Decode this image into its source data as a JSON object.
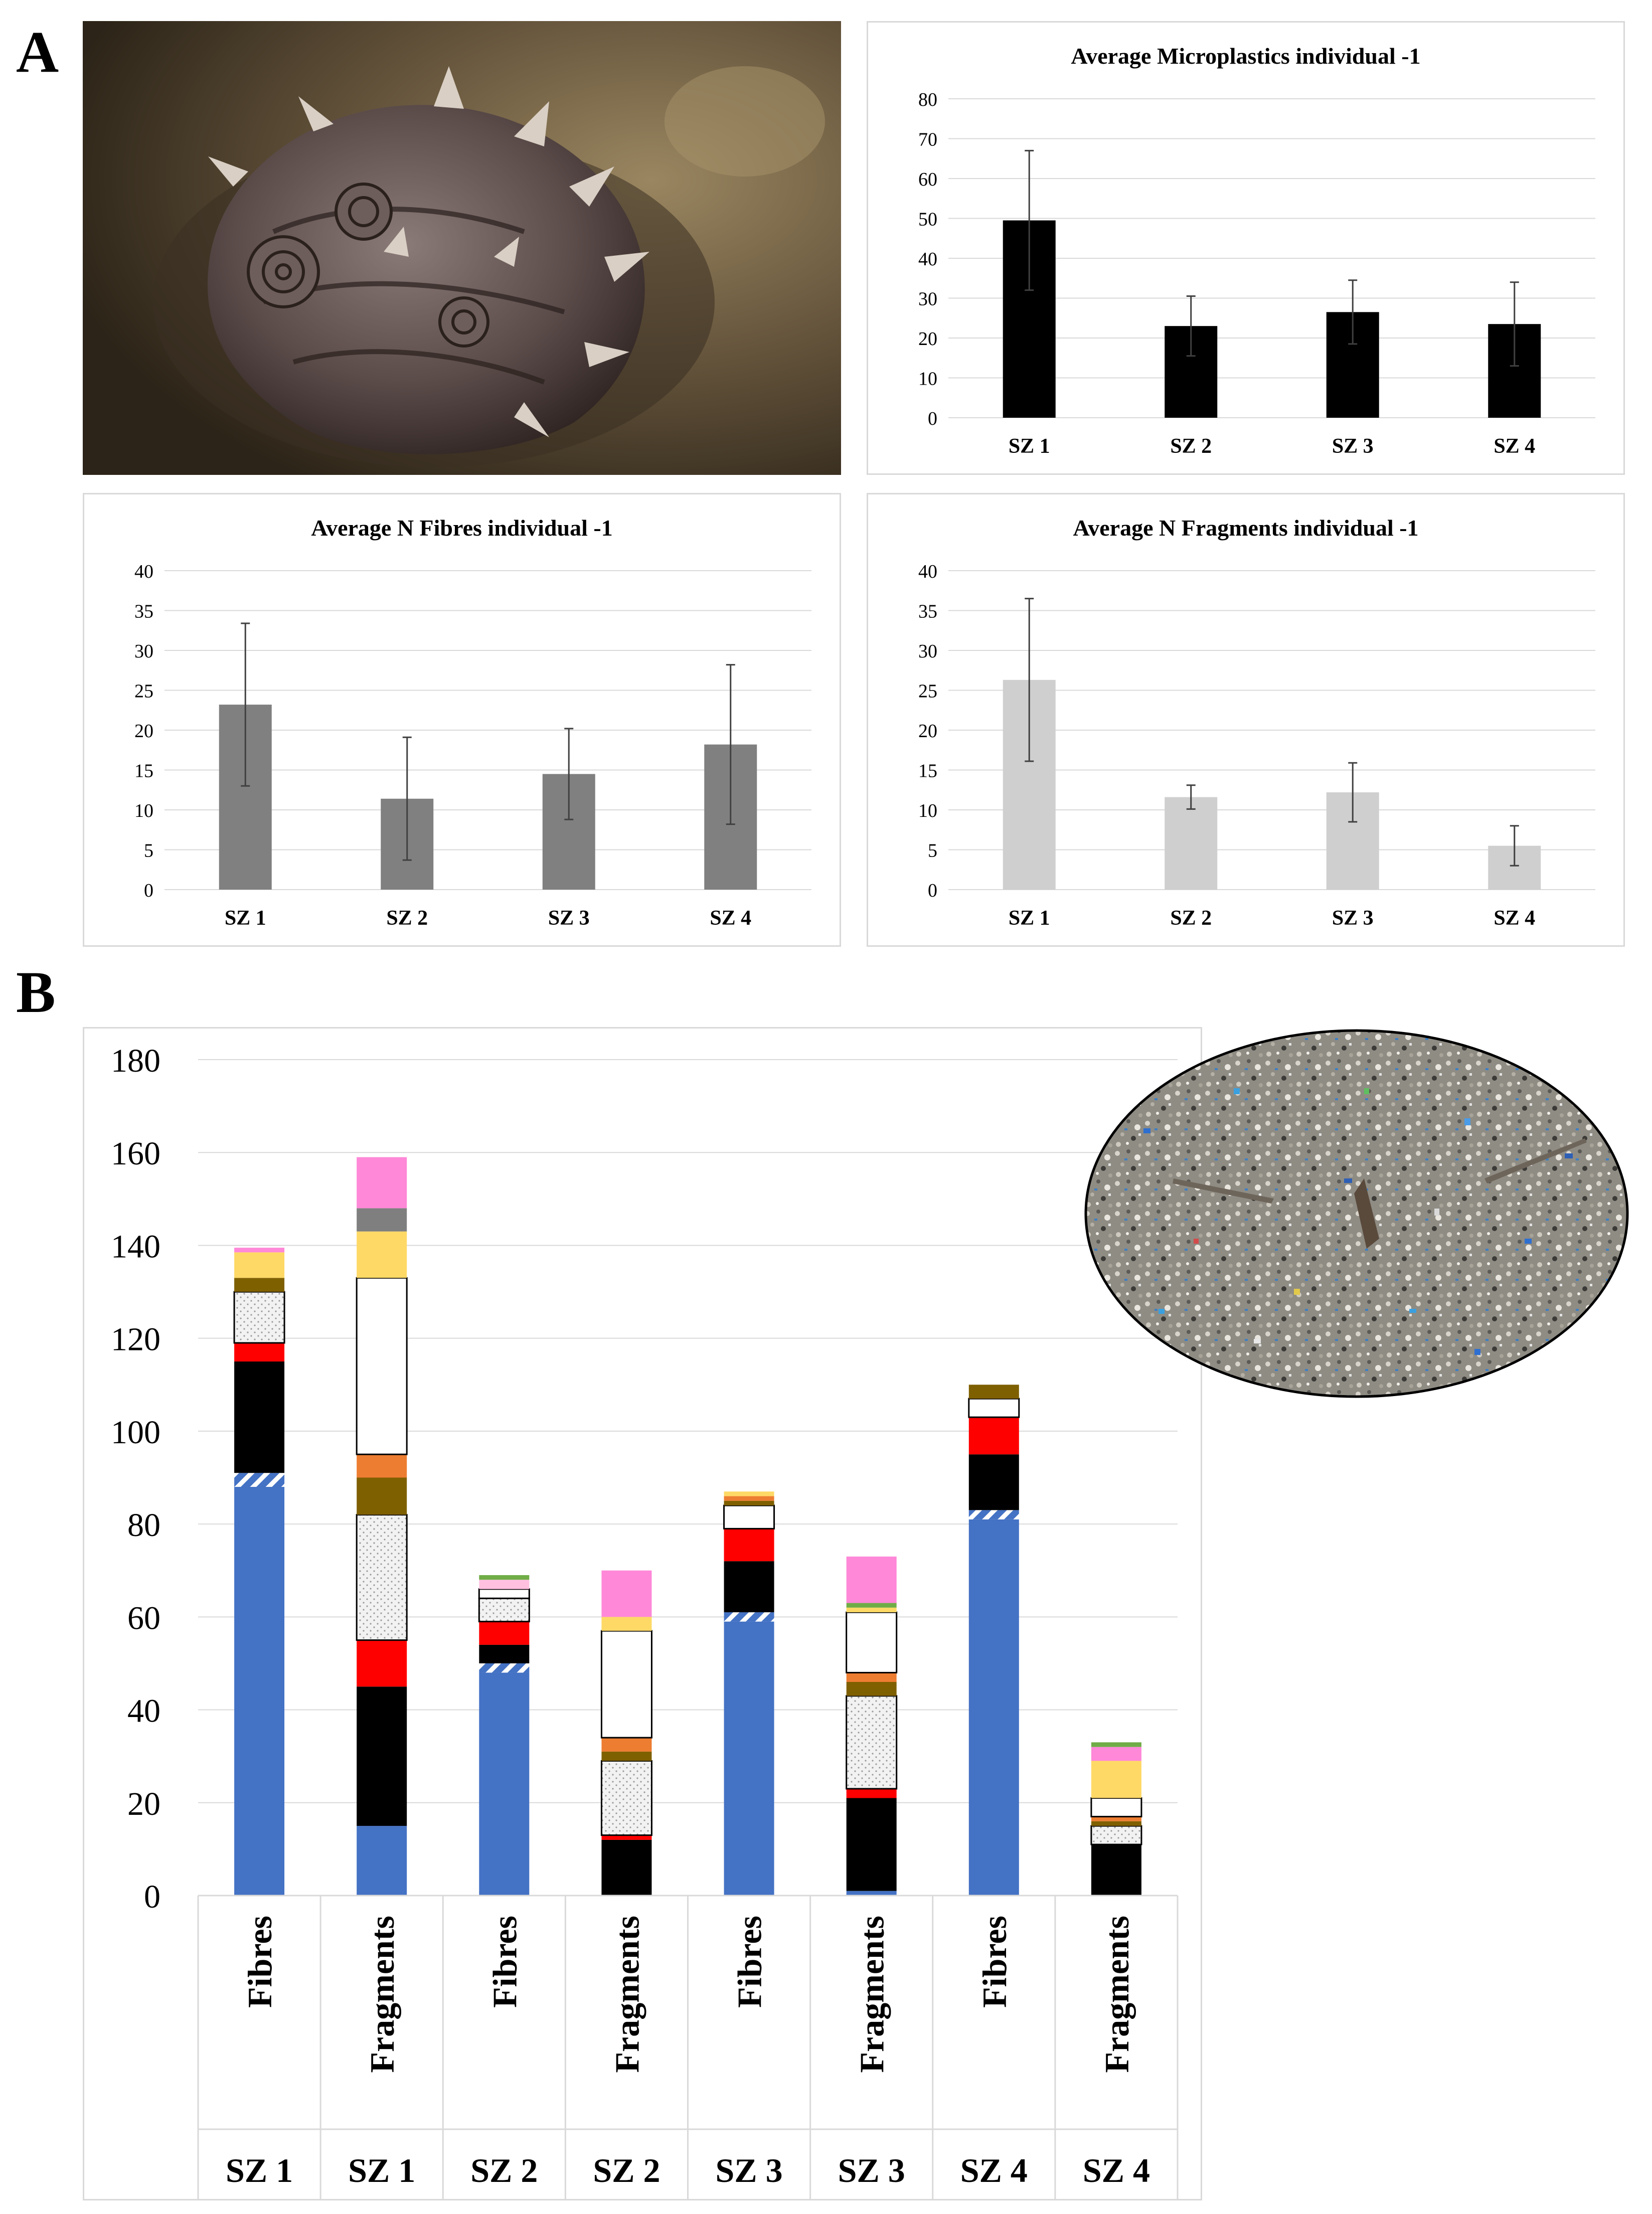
{
  "panel_labels": {
    "a": "A",
    "b": "B"
  },
  "photos": {
    "sea_cucumber": {
      "alt": "Close-up photograph of a sea cucumber"
    },
    "microplastics": {
      "alt": "Beach sediment mixed with coloured microplastic particles"
    }
  },
  "colors": {
    "total_bar": "#000000",
    "fibres_bar": "#808080",
    "fragments_bar": "#cfcfcf",
    "error_bar": "#404040",
    "grid": "#d9d9d9",
    "segment_colors": {
      "blue": "#4472c4",
      "hatched": "#4472c4",
      "black": "#000000",
      "red": "#ff0000",
      "dotted_white": "#f2f2f2",
      "olive": "#7f6000",
      "orange": "#ed7d31",
      "white": "#ffffff",
      "yellow": "#ffd966",
      "gray": "#7f7f7f",
      "pink": "#ff88d8",
      "green": "#70ad47",
      "light_pink": "#ffc0e0"
    }
  },
  "chart_data": [
    {
      "id": "total",
      "type": "bar",
      "title": "Average Microplastics individual  -1",
      "categories": [
        "SZ 1",
        "SZ 2",
        "SZ 3",
        "SZ 4"
      ],
      "values": [
        49.5,
        23,
        26.5,
        23.5
      ],
      "errors": [
        17.5,
        7.5,
        8,
        10.5
      ],
      "ylim": [
        0,
        80
      ],
      "yticks": [
        0,
        10,
        20,
        30,
        40,
        50,
        60,
        70,
        80
      ],
      "grid": true,
      "color_key": "total_bar"
    },
    {
      "id": "fibres",
      "type": "bar",
      "title": "Average N Fibres individual -1",
      "categories": [
        "SZ 1",
        "SZ 2",
        "SZ 3",
        "SZ 4"
      ],
      "values": [
        23.2,
        11.4,
        14.5,
        18.2
      ],
      "errors": [
        10.2,
        7.7,
        5.7,
        10
      ],
      "ylim": [
        0,
        40
      ],
      "yticks": [
        0,
        5,
        10,
        15,
        20,
        25,
        30,
        35,
        40
      ],
      "grid": true,
      "color_key": "fibres_bar"
    },
    {
      "id": "fragments",
      "type": "bar",
      "title": "Average N Fragments individual -1",
      "categories": [
        "SZ 1",
        "SZ 2",
        "SZ 3",
        "SZ 4"
      ],
      "values": [
        26.3,
        11.6,
        12.2,
        5.5
      ],
      "errors": [
        10.2,
        1.5,
        3.7,
        2.5
      ],
      "ylim": [
        0,
        40
      ],
      "yticks": [
        0,
        5,
        10,
        15,
        20,
        25,
        30,
        35,
        40
      ],
      "grid": true,
      "color_key": "fragments_bar"
    },
    {
      "id": "stacked",
      "type": "bar",
      "stacked": true,
      "title": "",
      "ylim": [
        0,
        180
      ],
      "yticks": [
        0,
        20,
        40,
        60,
        80,
        100,
        120,
        140,
        160,
        180
      ],
      "grid": true,
      "bars": [
        {
          "type_label": "Fibres",
          "site": "SZ 1",
          "segments": [
            {
              "color": "blue",
              "value": 88
            },
            {
              "color": "hatched",
              "value": 3
            },
            {
              "color": "black",
              "value": 24
            },
            {
              "color": "red",
              "value": 4
            },
            {
              "color": "dotted_white",
              "value": 11
            },
            {
              "color": "olive",
              "value": 3
            },
            {
              "color": "yellow",
              "value": 5.5
            },
            {
              "color": "pink",
              "value": 1
            }
          ]
        },
        {
          "type_label": "Fragments",
          "site": "SZ 1",
          "segments": [
            {
              "color": "blue",
              "value": 15
            },
            {
              "color": "black",
              "value": 30
            },
            {
              "color": "red",
              "value": 10
            },
            {
              "color": "dotted_white",
              "value": 27
            },
            {
              "color": "olive",
              "value": 8
            },
            {
              "color": "orange",
              "value": 5
            },
            {
              "color": "white",
              "value": 38
            },
            {
              "color": "yellow",
              "value": 10
            },
            {
              "color": "gray",
              "value": 5
            },
            {
              "color": "pink",
              "value": 11
            }
          ]
        },
        {
          "type_label": "Fibres",
          "site": "SZ 2",
          "segments": [
            {
              "color": "blue",
              "value": 48
            },
            {
              "color": "hatched",
              "value": 2
            },
            {
              "color": "black",
              "value": 4
            },
            {
              "color": "red",
              "value": 5
            },
            {
              "color": "dotted_white",
              "value": 5
            },
            {
              "color": "white",
              "value": 2
            },
            {
              "color": "light_pink",
              "value": 2
            },
            {
              "color": "green",
              "value": 1
            }
          ]
        },
        {
          "type_label": "Fragments",
          "site": "SZ 2",
          "segments": [
            {
              "color": "black",
              "value": 12
            },
            {
              "color": "red",
              "value": 1
            },
            {
              "color": "dotted_white",
              "value": 16
            },
            {
              "color": "olive",
              "value": 2
            },
            {
              "color": "orange",
              "value": 3
            },
            {
              "color": "white",
              "value": 23
            },
            {
              "color": "yellow",
              "value": 3
            },
            {
              "color": "pink",
              "value": 10
            }
          ]
        },
        {
          "type_label": "Fibres",
          "site": "SZ 3",
          "segments": [
            {
              "color": "blue",
              "value": 59
            },
            {
              "color": "hatched",
              "value": 2
            },
            {
              "color": "black",
              "value": 11
            },
            {
              "color": "red",
              "value": 7
            },
            {
              "color": "white",
              "value": 5
            },
            {
              "color": "olive",
              "value": 1
            },
            {
              "color": "orange",
              "value": 1
            },
            {
              "color": "yellow",
              "value": 1
            }
          ]
        },
        {
          "type_label": "Fragments",
          "site": "SZ 3",
          "segments": [
            {
              "color": "blue",
              "value": 1
            },
            {
              "color": "black",
              "value": 20
            },
            {
              "color": "red",
              "value": 2
            },
            {
              "color": "dotted_white",
              "value": 20
            },
            {
              "color": "olive",
              "value": 3
            },
            {
              "color": "orange",
              "value": 2
            },
            {
              "color": "white",
              "value": 13
            },
            {
              "color": "yellow",
              "value": 1
            },
            {
              "color": "green",
              "value": 1
            },
            {
              "color": "pink",
              "value": 10
            }
          ]
        },
        {
          "type_label": "Fibres",
          "site": "SZ 4",
          "segments": [
            {
              "color": "blue",
              "value": 81
            },
            {
              "color": "hatched",
              "value": 2
            },
            {
              "color": "black",
              "value": 12
            },
            {
              "color": "red",
              "value": 8
            },
            {
              "color": "white",
              "value": 4
            },
            {
              "color": "olive",
              "value": 3
            }
          ]
        },
        {
          "type_label": "Fragments",
          "site": "SZ 4",
          "segments": [
            {
              "color": "black",
              "value": 11
            },
            {
              "color": "dotted_white",
              "value": 4
            },
            {
              "color": "olive",
              "value": 1
            },
            {
              "color": "orange",
              "value": 1
            },
            {
              "color": "white",
              "value": 4
            },
            {
              "color": "yellow",
              "value": 8
            },
            {
              "color": "pink",
              "value": 3
            },
            {
              "color": "green",
              "value": 1
            }
          ]
        }
      ]
    }
  ]
}
